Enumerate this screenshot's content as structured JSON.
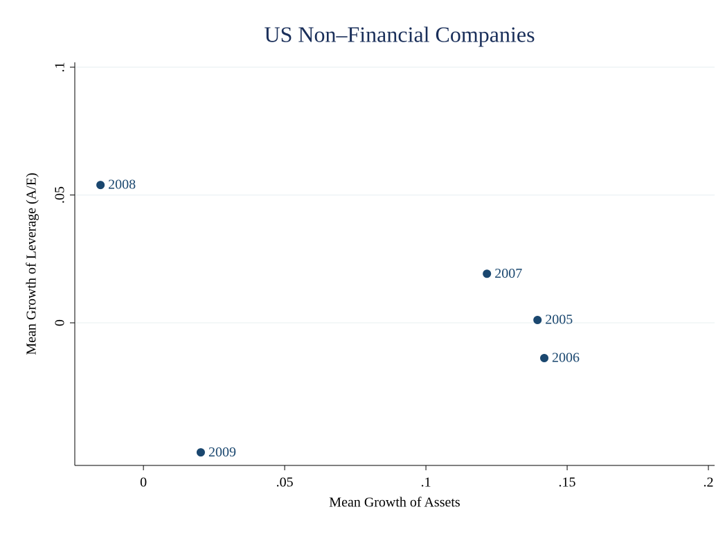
{
  "chart_data": {
    "type": "scatter",
    "title": "US Non–Financial Companies",
    "xlabel": "Mean Growth of Assets",
    "ylabel": "Mean Growth of Leverage (A/E)",
    "x": [
      -0.0152,
      0.1216,
      0.1395,
      0.1419,
      0.0203
    ],
    "values": [
      0.0539,
      0.0192,
      0.0011,
      -0.0138,
      -0.0507
    ],
    "labels": [
      "2008",
      "2007",
      "2005",
      "2006",
      "2009"
    ],
    "color": "#1a476f",
    "title_color": "#1a2f5a",
    "xlim": [
      -0.0243,
      0.2022
    ],
    "ylim": [
      -0.0558,
      0.1019
    ],
    "xticks": [
      0,
      {
        "value": 0.05,
        "label": ".05"
      },
      {
        "value": 0.1,
        "label": ".1"
      },
      {
        "value": 0.15,
        "label": ".15"
      },
      {
        "value": 0.2,
        "label": ".2"
      }
    ],
    "yticks": [
      0,
      {
        "value": 0.05,
        "label": ".05"
      },
      {
        "value": 0.1,
        "label": ".1"
      }
    ],
    "grid": true
  }
}
